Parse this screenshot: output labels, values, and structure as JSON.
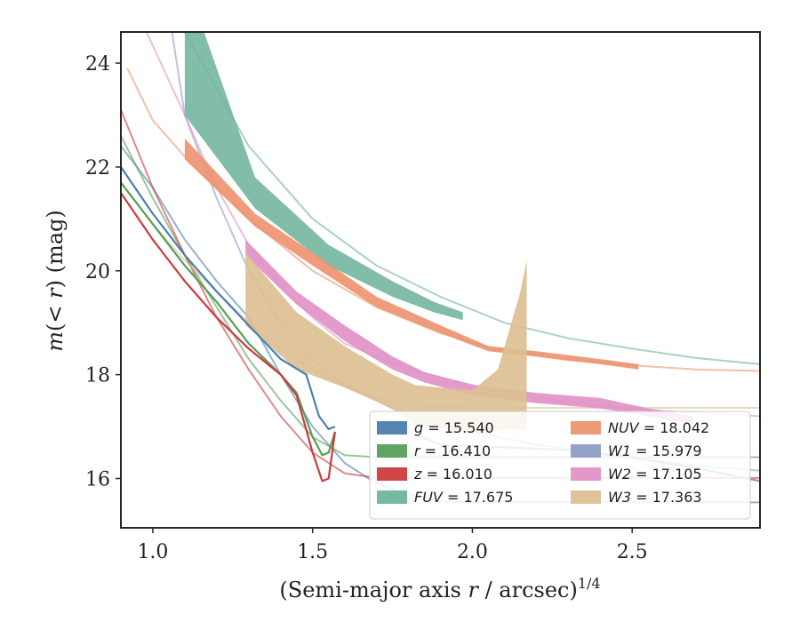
{
  "chart_data": {
    "type": "line",
    "xlabel": "(Semi-major axis r / arcsec)",
    "xlabel_parts": {
      "open": "(Semi-major axis ",
      "var": "r",
      "mid": " / arcsec)",
      "sup": "1/4"
    },
    "ylabel": "m(<r) (mag)",
    "ylabel_parts": {
      "var": "m",
      "open": "(",
      "lt": "< ",
      "r": "r",
      "close": ")",
      "unit": " (mag)"
    },
    "xlim": [
      0.9,
      2.9
    ],
    "ylim": [
      24.6,
      15.05
    ],
    "y_inverted": true,
    "xticks": [
      1.0,
      1.5,
      2.0,
      2.5
    ],
    "xtick_labels": [
      "1.0",
      "1.5",
      "2.0",
      "2.5"
    ],
    "yticks": [
      16,
      18,
      20,
      22,
      24
    ],
    "ytick_labels": [
      "16",
      "18",
      "20",
      "22",
      "24"
    ],
    "grid": false,
    "legend_placement": "lower-right",
    "legend": [
      {
        "band": "g",
        "italic": true,
        "text": " = 15.540",
        "color": "#4c7fae"
      },
      {
        "band": "r",
        "italic": true,
        "text": " = 16.410",
        "color": "#55a058"
      },
      {
        "band": "z",
        "italic": true,
        "text": " = 16.010",
        "color": "#cc3b3e"
      },
      {
        "band": "FUV",
        "italic": true,
        "text": " = 17.675",
        "color": "#6fb49c"
      },
      {
        "band": "NUV",
        "italic": true,
        "text": " = 18.042",
        "color": "#ed9470"
      },
      {
        "band": "W1",
        "italic": true,
        "text": " = 15.979",
        "color": "#8e9dc4"
      },
      {
        "band": "W2",
        "italic": true,
        "text": " = 17.105",
        "color": "#e093c6"
      },
      {
        "band": "W3",
        "italic": true,
        "text": " = 17.363",
        "color": "#dcbf94"
      }
    ],
    "model_curves": [
      {
        "band": "g",
        "color": "#4c7fae",
        "points": [
          [
            0.9,
            22.4
          ],
          [
            1.0,
            21.6
          ],
          [
            1.1,
            20.6
          ],
          [
            1.2,
            19.8
          ],
          [
            1.3,
            19.1
          ],
          [
            1.4,
            18.0
          ],
          [
            1.5,
            17.0
          ],
          [
            1.6,
            16.3
          ],
          [
            1.7,
            15.9
          ],
          [
            1.8,
            15.7
          ],
          [
            1.9,
            15.56
          ],
          [
            2.0,
            15.54
          ],
          [
            2.9,
            15.54
          ]
        ]
      },
      {
        "band": "r",
        "color": "#55a058",
        "points": [
          [
            0.9,
            22.6
          ],
          [
            1.0,
            21.4
          ],
          [
            1.1,
            20.3
          ],
          [
            1.2,
            19.3
          ],
          [
            1.3,
            18.3
          ],
          [
            1.4,
            17.5
          ],
          [
            1.5,
            16.8
          ],
          [
            1.6,
            16.45
          ],
          [
            1.7,
            16.41
          ],
          [
            2.9,
            16.41
          ]
        ]
      },
      {
        "band": "z",
        "color": "#cc3b3e",
        "points": [
          [
            0.9,
            23.1
          ],
          [
            1.0,
            21.6
          ],
          [
            1.1,
            20.3
          ],
          [
            1.2,
            19.1
          ],
          [
            1.3,
            18.1
          ],
          [
            1.4,
            17.2
          ],
          [
            1.5,
            16.5
          ],
          [
            1.6,
            16.1
          ],
          [
            1.7,
            16.01
          ],
          [
            2.9,
            16.01
          ]
        ]
      },
      {
        "band": "FUV",
        "color": "#6fb49c",
        "points": [
          [
            1.1,
            24.6
          ],
          [
            1.3,
            22.4
          ],
          [
            1.5,
            21.0
          ],
          [
            1.7,
            20.1
          ],
          [
            1.9,
            19.5
          ],
          [
            2.1,
            19.0
          ],
          [
            2.3,
            18.7
          ],
          [
            2.5,
            18.5
          ],
          [
            2.7,
            18.32
          ],
          [
            2.9,
            18.2
          ]
        ]
      },
      {
        "band": "NUV",
        "color": "#ed9470",
        "points": [
          [
            0.92,
            23.9
          ],
          [
            1.0,
            22.9
          ],
          [
            1.1,
            22.2
          ],
          [
            1.3,
            21.0
          ],
          [
            1.5,
            20.0
          ],
          [
            1.7,
            19.3
          ],
          [
            1.9,
            18.8
          ],
          [
            2.1,
            18.45
          ],
          [
            2.3,
            18.28
          ],
          [
            2.5,
            18.18
          ],
          [
            2.7,
            18.1
          ],
          [
            2.9,
            18.07
          ]
        ]
      },
      {
        "band": "W1",
        "color": "#8e9dc4",
        "points": [
          [
            1.06,
            24.6
          ],
          [
            1.1,
            23.0
          ],
          [
            1.2,
            21.4
          ],
          [
            1.3,
            20.0
          ],
          [
            1.4,
            19.0
          ],
          [
            1.5,
            18.3
          ],
          [
            1.6,
            17.8
          ],
          [
            1.8,
            17.2
          ],
          [
            2.0,
            16.9
          ],
          [
            2.2,
            16.65
          ],
          [
            2.5,
            16.4
          ],
          [
            2.7,
            16.25
          ],
          [
            2.9,
            16.15
          ]
        ]
      },
      {
        "band": "W2",
        "color": "#e093c6",
        "points": [
          [
            0.98,
            24.6
          ],
          [
            1.1,
            23.0
          ],
          [
            1.2,
            21.6
          ],
          [
            1.3,
            20.5
          ],
          [
            1.4,
            19.7
          ],
          [
            1.5,
            19.1
          ],
          [
            1.6,
            18.6
          ],
          [
            1.8,
            18.1
          ],
          [
            2.0,
            17.8
          ],
          [
            2.2,
            17.55
          ],
          [
            2.4,
            17.4
          ],
          [
            2.6,
            17.3
          ],
          [
            2.9,
            17.2
          ]
        ]
      },
      {
        "band": "W3",
        "color": "#dcbf94",
        "points": [
          [
            0.9,
            21.7
          ],
          [
            1.0,
            20.9
          ],
          [
            1.1,
            20.2
          ],
          [
            1.2,
            19.6
          ],
          [
            1.3,
            19.0
          ],
          [
            1.4,
            18.5
          ],
          [
            1.5,
            18.1
          ],
          [
            1.6,
            17.8
          ],
          [
            1.7,
            17.55
          ],
          [
            1.8,
            17.4
          ],
          [
            2.0,
            17.36
          ],
          [
            2.9,
            17.36
          ]
        ]
      }
    ],
    "data_curves": [
      {
        "band": "g",
        "color": "#4c7fae",
        "points": [
          [
            0.9,
            22.0
          ],
          [
            1.0,
            21.1
          ],
          [
            1.1,
            20.3
          ],
          [
            1.2,
            19.6
          ],
          [
            1.3,
            18.95
          ],
          [
            1.4,
            18.3
          ],
          [
            1.48,
            18.0
          ],
          [
            1.52,
            17.2
          ],
          [
            1.55,
            16.95
          ],
          [
            1.57,
            17.0
          ]
        ]
      },
      {
        "band": "r",
        "color": "#55a058",
        "points": [
          [
            0.9,
            21.7
          ],
          [
            1.0,
            20.9
          ],
          [
            1.1,
            20.1
          ],
          [
            1.2,
            19.4
          ],
          [
            1.3,
            18.6
          ],
          [
            1.4,
            18.0
          ],
          [
            1.45,
            17.65
          ],
          [
            1.5,
            16.8
          ],
          [
            1.53,
            16.45
          ],
          [
            1.55,
            16.5
          ],
          [
            1.57,
            16.9
          ]
        ]
      },
      {
        "band": "z",
        "color": "#cc3b3e",
        "points": [
          [
            0.9,
            21.5
          ],
          [
            1.0,
            20.6
          ],
          [
            1.1,
            19.8
          ],
          [
            1.2,
            19.1
          ],
          [
            1.3,
            18.5
          ],
          [
            1.4,
            18.0
          ],
          [
            1.45,
            17.6
          ],
          [
            1.5,
            16.5
          ],
          [
            1.53,
            15.95
          ],
          [
            1.55,
            16.0
          ],
          [
            1.57,
            16.9
          ]
        ]
      },
      {
        "band": "W1",
        "color": "#8e9dc4",
        "points": [
          [
            1.82,
            16.85
          ],
          [
            1.9,
            16.65
          ],
          [
            2.1,
            16.6
          ],
          [
            2.3,
            16.55
          ],
          [
            2.5,
            16.4
          ],
          [
            2.7,
            16.2
          ],
          [
            2.9,
            15.95
          ]
        ]
      }
    ],
    "bands": [
      {
        "band": "FUV",
        "color": "#6fb49c",
        "opacity": 0.88,
        "upper": [
          [
            1.1,
            23.0
          ],
          [
            1.32,
            21.2
          ],
          [
            1.55,
            20.1
          ],
          [
            1.75,
            19.5
          ],
          [
            1.88,
            19.2
          ],
          [
            1.97,
            19.05
          ]
        ],
        "lower": [
          [
            1.1,
            24.6
          ],
          [
            1.16,
            24.6
          ],
          [
            1.32,
            21.8
          ],
          [
            1.55,
            20.5
          ],
          [
            1.75,
            19.8
          ],
          [
            1.88,
            19.4
          ],
          [
            1.97,
            19.2
          ]
        ]
      },
      {
        "band": "NUV",
        "color": "#ed9470",
        "opacity": 0.92,
        "upper": [
          [
            1.1,
            22.15
          ],
          [
            1.32,
            20.85
          ],
          [
            1.5,
            20.1
          ],
          [
            1.7,
            19.3
          ],
          [
            1.9,
            18.8
          ],
          [
            2.05,
            18.45
          ],
          [
            2.2,
            18.35
          ],
          [
            2.4,
            18.2
          ],
          [
            2.52,
            18.1
          ]
        ],
        "lower": [
          [
            1.1,
            22.55
          ],
          [
            1.32,
            21.1
          ],
          [
            1.5,
            20.35
          ],
          [
            1.7,
            19.5
          ],
          [
            1.9,
            18.95
          ],
          [
            2.05,
            18.55
          ],
          [
            2.2,
            18.45
          ],
          [
            2.4,
            18.3
          ],
          [
            2.52,
            18.2
          ]
        ]
      },
      {
        "band": "W2",
        "color": "#e093c6",
        "opacity": 0.92,
        "upper": [
          [
            1.29,
            20.3
          ],
          [
            1.45,
            19.35
          ],
          [
            1.6,
            18.65
          ],
          [
            1.75,
            18.1
          ],
          [
            1.85,
            17.85
          ],
          [
            2.0,
            17.6
          ],
          [
            2.2,
            17.45
          ],
          [
            2.4,
            17.35
          ],
          [
            2.55,
            17.2
          ],
          [
            2.69,
            17.05
          ]
        ],
        "lower": [
          [
            1.29,
            20.6
          ],
          [
            1.45,
            19.6
          ],
          [
            1.6,
            18.95
          ],
          [
            1.75,
            18.35
          ],
          [
            1.85,
            18.05
          ],
          [
            2.0,
            17.8
          ],
          [
            2.2,
            17.65
          ],
          [
            2.4,
            17.55
          ],
          [
            2.55,
            17.35
          ],
          [
            2.69,
            17.2
          ]
        ]
      },
      {
        "band": "W3",
        "color": "#dcbf94",
        "opacity": 0.92,
        "upper": [
          [
            1.29,
            18.95
          ],
          [
            1.45,
            18.1
          ],
          [
            1.6,
            17.75
          ],
          [
            1.75,
            17.35
          ],
          [
            1.82,
            17.05
          ],
          [
            2.02,
            16.85
          ],
          [
            2.1,
            16.95
          ],
          [
            2.17,
            16.95
          ]
        ],
        "lower": [
          [
            1.29,
            20.35
          ],
          [
            1.45,
            19.2
          ],
          [
            1.6,
            18.55
          ],
          [
            1.75,
            18.0
          ],
          [
            1.82,
            17.8
          ],
          [
            1.9,
            17.75
          ],
          [
            2.0,
            17.7
          ],
          [
            2.08,
            18.1
          ],
          [
            2.15,
            19.6
          ],
          [
            2.17,
            20.2
          ]
        ]
      }
    ]
  }
}
